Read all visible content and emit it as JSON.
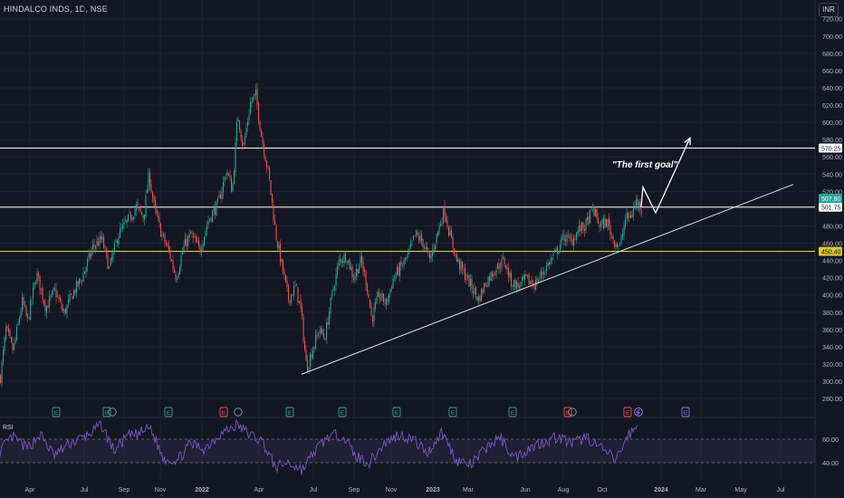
{
  "header": {
    "ticker": "HINDALCO INDS, 1D, NSE",
    "currency": "INR"
  },
  "chart_data": {
    "type": "candlestick",
    "ylim": [
      270,
      730
    ],
    "y_ticks": [
      280,
      300,
      320,
      340,
      360,
      380,
      400,
      420,
      440,
      460,
      480,
      500,
      520,
      540,
      560,
      580,
      600,
      620,
      640,
      660,
      680,
      700,
      720
    ],
    "x_ticks": [
      "Apr",
      "Jul",
      "Sep",
      "Nov",
      "2022",
      "Apr",
      "Jul",
      "Sep",
      "Nov",
      "2023",
      "Mar",
      "Jun",
      "Aug",
      "Oct",
      "2024",
      "Mar",
      "May",
      "Jul"
    ],
    "price_path": [
      {
        "d": 0,
        "p": 305
      },
      {
        "d": 6,
        "p": 360
      },
      {
        "d": 14,
        "p": 335
      },
      {
        "d": 24,
        "p": 392
      },
      {
        "d": 30,
        "p": 370
      },
      {
        "d": 40,
        "p": 425
      },
      {
        "d": 50,
        "p": 385
      },
      {
        "d": 60,
        "p": 405
      },
      {
        "d": 70,
        "p": 378
      },
      {
        "d": 80,
        "p": 402
      },
      {
        "d": 90,
        "p": 420
      },
      {
        "d": 102,
        "p": 455
      },
      {
        "d": 112,
        "p": 465
      },
      {
        "d": 120,
        "p": 430
      },
      {
        "d": 130,
        "p": 470
      },
      {
        "d": 140,
        "p": 485
      },
      {
        "d": 150,
        "p": 502
      },
      {
        "d": 158,
        "p": 490
      },
      {
        "d": 164,
        "p": 540
      },
      {
        "d": 170,
        "p": 500
      },
      {
        "d": 178,
        "p": 470
      },
      {
        "d": 186,
        "p": 450
      },
      {
        "d": 194,
        "p": 420
      },
      {
        "d": 202,
        "p": 455
      },
      {
        "d": 210,
        "p": 470
      },
      {
        "d": 220,
        "p": 452
      },
      {
        "d": 230,
        "p": 488
      },
      {
        "d": 240,
        "p": 505
      },
      {
        "d": 250,
        "p": 545
      },
      {
        "d": 256,
        "p": 520
      },
      {
        "d": 262,
        "p": 610
      },
      {
        "d": 268,
        "p": 570
      },
      {
        "d": 276,
        "p": 622
      },
      {
        "d": 282,
        "p": 632
      },
      {
        "d": 288,
        "p": 585
      },
      {
        "d": 296,
        "p": 540
      },
      {
        "d": 304,
        "p": 470
      },
      {
        "d": 310,
        "p": 438
      },
      {
        "d": 318,
        "p": 395
      },
      {
        "d": 326,
        "p": 410
      },
      {
        "d": 332,
        "p": 380
      },
      {
        "d": 338,
        "p": 315
      },
      {
        "d": 344,
        "p": 335
      },
      {
        "d": 352,
        "p": 360
      },
      {
        "d": 358,
        "p": 350
      },
      {
        "d": 366,
        "p": 400
      },
      {
        "d": 374,
        "p": 440
      },
      {
        "d": 382,
        "p": 445
      },
      {
        "d": 390,
        "p": 420
      },
      {
        "d": 398,
        "p": 440
      },
      {
        "d": 404,
        "p": 415
      },
      {
        "d": 410,
        "p": 372
      },
      {
        "d": 418,
        "p": 400
      },
      {
        "d": 426,
        "p": 390
      },
      {
        "d": 434,
        "p": 420
      },
      {
        "d": 442,
        "p": 432
      },
      {
        "d": 450,
        "p": 445
      },
      {
        "d": 458,
        "p": 470
      },
      {
        "d": 466,
        "p": 462
      },
      {
        "d": 474,
        "p": 440
      },
      {
        "d": 482,
        "p": 470
      },
      {
        "d": 490,
        "p": 500
      },
      {
        "d": 496,
        "p": 470
      },
      {
        "d": 504,
        "p": 440
      },
      {
        "d": 512,
        "p": 425
      },
      {
        "d": 520,
        "p": 410
      },
      {
        "d": 528,
        "p": 395
      },
      {
        "d": 536,
        "p": 415
      },
      {
        "d": 546,
        "p": 430
      },
      {
        "d": 556,
        "p": 440
      },
      {
        "d": 564,
        "p": 415
      },
      {
        "d": 572,
        "p": 410
      },
      {
        "d": 580,
        "p": 418
      },
      {
        "d": 590,
        "p": 412
      },
      {
        "d": 598,
        "p": 425
      },
      {
        "d": 606,
        "p": 438
      },
      {
        "d": 614,
        "p": 450
      },
      {
        "d": 622,
        "p": 468
      },
      {
        "d": 630,
        "p": 462
      },
      {
        "d": 638,
        "p": 475
      },
      {
        "d": 646,
        "p": 480
      },
      {
        "d": 654,
        "p": 500
      },
      {
        "d": 662,
        "p": 480
      },
      {
        "d": 670,
        "p": 485
      },
      {
        "d": 676,
        "p": 465
      },
      {
        "d": 684,
        "p": 455
      },
      {
        "d": 690,
        "p": 488
      },
      {
        "d": 696,
        "p": 492
      },
      {
        "d": 702,
        "p": 508
      },
      {
        "d": 708,
        "p": 502
      }
    ],
    "trendline": [
      {
        "d": 333,
        "p": 308
      },
      {
        "d": 876,
        "p": 528
      }
    ],
    "projection_path": [
      {
        "d": 708,
        "p": 502
      },
      {
        "d": 710,
        "p": 525
      },
      {
        "d": 724,
        "p": 495
      },
      {
        "d": 762,
        "p": 582
      }
    ],
    "annotation": "\"The first goal\"",
    "levels": [
      {
        "value": 570.25,
        "label": "570.25",
        "color": "#ffffff",
        "label_bg": "#ffffff",
        "label_color": "#131722"
      },
      {
        "value": 501.75,
        "label": "501.75",
        "color": "#ffffff",
        "label_bg": "#ffffff",
        "label_color": "#131722"
      },
      {
        "value": 450.4,
        "label": "450.40",
        "color": "#f2e34a",
        "label_bg": "#d8c73a",
        "label_color": "#131722"
      }
    ],
    "last_price": {
      "value": 507.8,
      "label": "507.80",
      "bg": "#26a69a"
    },
    "events": [
      {
        "d": 62,
        "t": "E"
      },
      {
        "d": 118,
        "t": "E"
      },
      {
        "d": 124,
        "t": "D"
      },
      {
        "d": 186,
        "t": "E"
      },
      {
        "d": 247,
        "t": "E"
      },
      {
        "d": 263,
        "t": "D"
      },
      {
        "d": 320,
        "t": "E"
      },
      {
        "d": 378,
        "t": "E"
      },
      {
        "d": 438,
        "t": "E"
      },
      {
        "d": 500,
        "t": "E"
      },
      {
        "d": 566,
        "t": "E"
      },
      {
        "d": 627,
        "t": "E"
      },
      {
        "d": 632,
        "t": "D"
      },
      {
        "d": 693,
        "t": "E"
      },
      {
        "d": 705,
        "t": "S"
      },
      {
        "d": 757,
        "t": "E"
      }
    ],
    "rsi": {
      "label": "RSI",
      "ylim": [
        30,
        80
      ],
      "levels": [
        60,
        40
      ],
      "path": [
        {
          "d": 0,
          "v": 50
        },
        {
          "d": 14,
          "v": 62
        },
        {
          "d": 30,
          "v": 52
        },
        {
          "d": 44,
          "v": 64
        },
        {
          "d": 60,
          "v": 46
        },
        {
          "d": 76,
          "v": 56
        },
        {
          "d": 94,
          "v": 62
        },
        {
          "d": 112,
          "v": 72
        },
        {
          "d": 126,
          "v": 50
        },
        {
          "d": 140,
          "v": 62
        },
        {
          "d": 152,
          "v": 64
        },
        {
          "d": 166,
          "v": 70
        },
        {
          "d": 180,
          "v": 44
        },
        {
          "d": 196,
          "v": 42
        },
        {
          "d": 210,
          "v": 56
        },
        {
          "d": 226,
          "v": 52
        },
        {
          "d": 242,
          "v": 64
        },
        {
          "d": 262,
          "v": 72
        },
        {
          "d": 276,
          "v": 64
        },
        {
          "d": 290,
          "v": 58
        },
        {
          "d": 304,
          "v": 36
        },
        {
          "d": 318,
          "v": 40
        },
        {
          "d": 334,
          "v": 34
        },
        {
          "d": 346,
          "v": 48
        },
        {
          "d": 362,
          "v": 62
        },
        {
          "d": 378,
          "v": 64
        },
        {
          "d": 392,
          "v": 46
        },
        {
          "d": 408,
          "v": 40
        },
        {
          "d": 424,
          "v": 56
        },
        {
          "d": 440,
          "v": 64
        },
        {
          "d": 456,
          "v": 60
        },
        {
          "d": 472,
          "v": 48
        },
        {
          "d": 488,
          "v": 66
        },
        {
          "d": 504,
          "v": 42
        },
        {
          "d": 520,
          "v": 38
        },
        {
          "d": 536,
          "v": 52
        },
        {
          "d": 552,
          "v": 62
        },
        {
          "d": 568,
          "v": 44
        },
        {
          "d": 584,
          "v": 52
        },
        {
          "d": 600,
          "v": 58
        },
        {
          "d": 616,
          "v": 62
        },
        {
          "d": 632,
          "v": 56
        },
        {
          "d": 648,
          "v": 62
        },
        {
          "d": 664,
          "v": 52
        },
        {
          "d": 680,
          "v": 42
        },
        {
          "d": 694,
          "v": 64
        },
        {
          "d": 704,
          "v": 70
        }
      ]
    },
    "rsi_ticks": [
      60.0,
      40.0
    ]
  }
}
